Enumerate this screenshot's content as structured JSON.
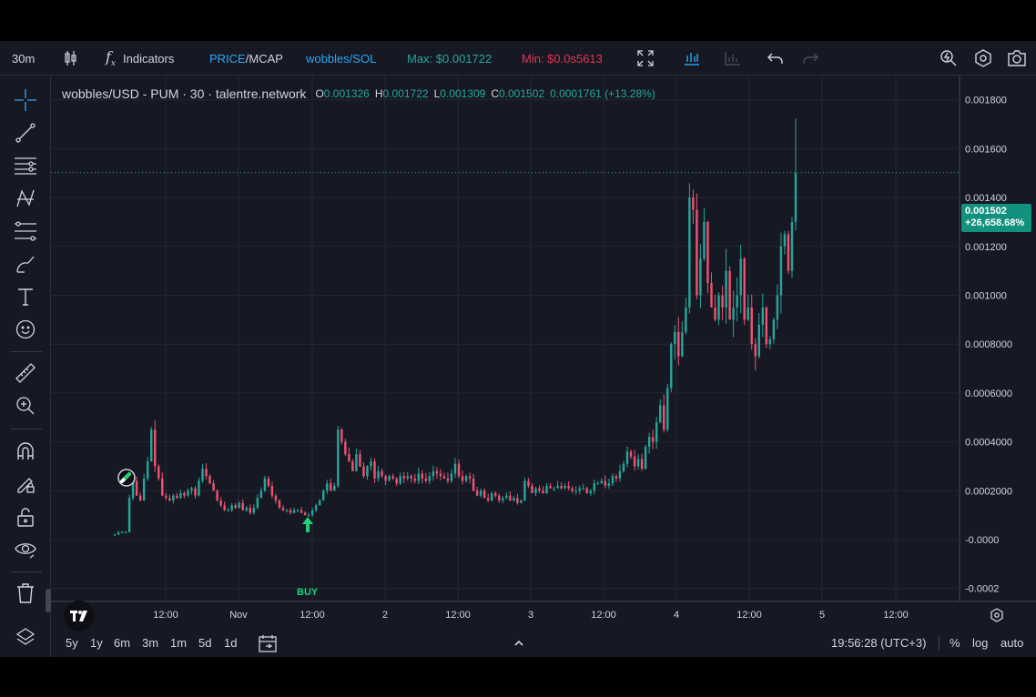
{
  "toolbar": {
    "interval": "30m",
    "candle_icon": "candles-icon",
    "indicators_label": "Indicators",
    "price_label": "PRICE",
    "slash": "/",
    "mcap_label": "MCAP",
    "pair_label": "wobbles/SOL",
    "max_label": "Max: $0.001722",
    "min_label": "Min: $0.0s5613",
    "colors": {
      "price": "#2ea6f2",
      "pair": "#2ea6f2",
      "max": "#26a69a",
      "min": "#e5344f"
    }
  },
  "legend": {
    "symbol": "wobbles/USD - PUM · 30 · talentre.network",
    "o_key": "O",
    "o_val": "0.001326",
    "h_key": "H",
    "h_val": "0.001722",
    "l_key": "L",
    "l_val": "0.001309",
    "c_key": "C",
    "c_val": "0.001502",
    "change": "0.0001761 (+13.28%)"
  },
  "price_badge": {
    "price": "0.001502",
    "change": "+26,658.68%"
  },
  "annotation": {
    "buy_label": "BUY"
  },
  "bottombar": {
    "ranges": [
      "5y",
      "1y",
      "6m",
      "3m",
      "1m",
      "5d",
      "1d"
    ],
    "clock": "19:56:28 (UTC+3)",
    "percent": "%",
    "log": "log",
    "auto": "auto"
  },
  "chart_data": {
    "type": "candlestick",
    "y_ticks": [
      "0.001800",
      "0.001600",
      "0.001400",
      "0.001200",
      "0.001000",
      "0.0008000",
      "0.0006000",
      "0.0004000",
      "0.0002000",
      "-0.0000",
      "-0.0002"
    ],
    "y_tick_values": [
      0.0018,
      0.0016,
      0.0014,
      0.0012,
      0.001,
      0.0008,
      0.0006,
      0.0004,
      0.0002,
      0.0,
      -0.0002
    ],
    "x_ticks": [
      "12:00",
      "Nov",
      "12:00",
      "2",
      "12:00",
      "3",
      "12:00",
      "4",
      "12:00",
      "5",
      "12:00"
    ],
    "last_close": 0.001502,
    "up_color": "#26a69a",
    "down_color": "#ef5370",
    "closes": [
      2e-05,
      3e-05,
      3e-05,
      3e-05,
      0.00017,
      0.00024,
      0.00018,
      0.00016,
      0.00025,
      0.00032,
      0.00045,
      0.0003,
      0.00025,
      0.00018,
      0.00017,
      0.00016,
      0.00018,
      0.00017,
      0.00019,
      0.00018,
      0.0002,
      0.00021,
      0.00018,
      0.00024,
      0.00029,
      0.00026,
      0.00023,
      0.0002,
      0.00016,
      0.00014,
      0.00012,
      0.00012,
      0.00014,
      0.00013,
      0.00015,
      0.00012,
      0.00013,
      0.00011,
      0.00013,
      0.00017,
      0.0002,
      0.00025,
      0.00022,
      0.00018,
      0.00016,
      0.00013,
      0.00012,
      0.00012,
      0.00011,
      0.00012,
      0.00012,
      0.00011,
      0.0001,
      0.0001,
      0.00012,
      0.00014,
      0.00016,
      0.0002,
      0.00023,
      0.0002,
      0.00022,
      0.00045,
      0.0004,
      0.00035,
      0.00032,
      0.00028,
      0.00035,
      0.0003,
      0.00026,
      0.0003,
      0.00032,
      0.00025,
      0.00028,
      0.00026,
      0.00024,
      0.00026,
      0.00025,
      0.00023,
      0.00026,
      0.00025,
      0.00026,
      0.00025,
      0.00024,
      0.00027,
      0.00025,
      0.00024,
      0.00026,
      0.00028,
      0.00027,
      0.00026,
      0.00025,
      0.00024,
      0.00027,
      0.00031,
      0.00026,
      0.00024,
      0.00026,
      0.00025,
      0.0002,
      0.00018,
      0.0002,
      0.00017,
      0.00016,
      0.00019,
      0.00018,
      0.00016,
      0.00017,
      0.00018,
      0.00016,
      0.00017,
      0.00015,
      0.00016,
      0.00024,
      0.00022,
      0.00019,
      0.00021,
      0.0002,
      0.00019,
      0.00022,
      0.00021,
      0.00021,
      0.00022,
      0.00021,
      0.00022,
      0.00021,
      0.0002,
      0.0002,
      0.00021,
      0.00021,
      0.00019,
      0.0002,
      0.00023,
      0.00023,
      0.00024,
      0.00022,
      0.00023,
      0.00026,
      0.00025,
      0.00028,
      0.00031,
      0.00036,
      0.00034,
      0.0003,
      0.00033,
      0.00029,
      0.00038,
      0.00042,
      0.0004,
      0.00048,
      0.00055,
      0.00045,
      0.00062,
      0.0008,
      0.00085,
      0.00075,
      0.00085,
      0.00095,
      0.0014,
      0.00135,
      0.001,
      0.00115,
      0.0013,
      0.00105,
      0.00095,
      0.0009,
      0.001,
      0.00095,
      0.0011,
      0.0009,
      0.00095,
      0.001,
      0.00115,
      0.0009,
      0.00095,
      0.0008,
      0.00075,
      0.00088,
      0.00095,
      0.0008,
      0.00082,
      0.0009,
      0.001,
      0.0012,
      0.00125,
      0.0011,
      0.0013,
      0.0015
    ]
  }
}
